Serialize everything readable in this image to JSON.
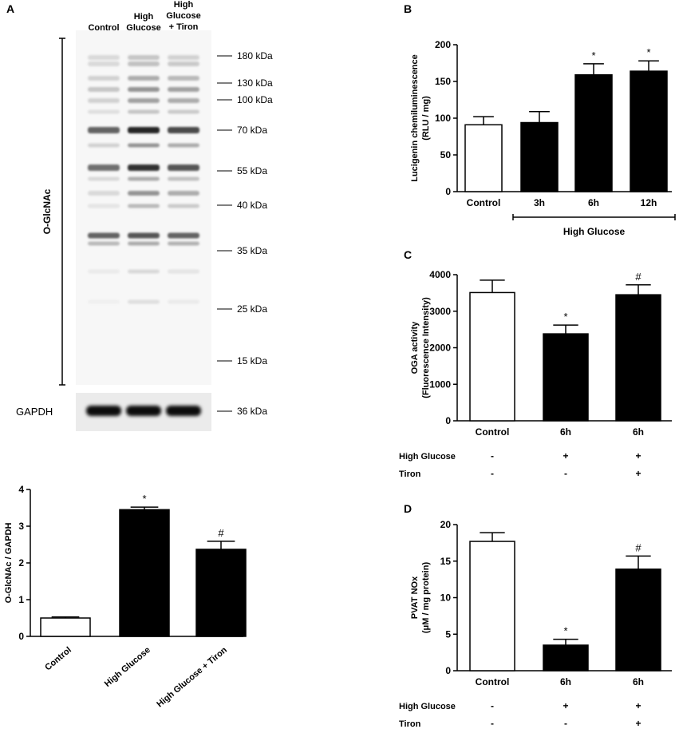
{
  "panel_labels": [
    "A",
    "B",
    "C",
    "D"
  ],
  "blot": {
    "lanes": [
      {
        "lines": [
          "Control"
        ]
      },
      {
        "lines": [
          "High",
          "Glucose"
        ]
      },
      {
        "lines": [
          "High",
          "Glucose",
          "+ Tiron"
        ]
      }
    ],
    "markers": [
      "180 kDa",
      "130 kDa",
      "100 kDa",
      "70 kDa",
      "55 kDa",
      "40 kDa",
      "35 kDa",
      "25 kDa",
      "15 kDa"
    ],
    "gapdh_marker": "36 kDa",
    "main_label": "O-GlcNAc",
    "gapdh_label": "GAPDH"
  },
  "chart_data": [
    {
      "panel": "A",
      "type": "bar",
      "categories": [
        "Control",
        "High Glucose",
        "High Glucose + Tiron"
      ],
      "values": [
        0.5,
        3.45,
        2.37
      ],
      "errors": [
        0.03,
        0.07,
        0.22
      ],
      "fills": [
        "#ffffff",
        "#000000",
        "#000000"
      ],
      "annotations": [
        "",
        "*",
        "#"
      ],
      "ylabel": "O-GlcNAc / GAPDH",
      "ylim": [
        0,
        4
      ],
      "yticks": [
        0,
        1,
        2,
        3,
        4
      ],
      "grid": false
    },
    {
      "panel": "B",
      "type": "bar",
      "categories": [
        "Control",
        "3h",
        "6h",
        "12h"
      ],
      "values": [
        91,
        94,
        159,
        164
      ],
      "errors": [
        11,
        15,
        15,
        14
      ],
      "fills": [
        "#ffffff",
        "#000000",
        "#000000",
        "#000000"
      ],
      "annotations": [
        "",
        "",
        "*",
        "*"
      ],
      "ylabel_lines": [
        "Lucigenin chemiluminescence",
        "(RLU / mg)"
      ],
      "ylim": [
        0,
        200
      ],
      "yticks": [
        0,
        50,
        100,
        150,
        200
      ],
      "group_label": "High Glucose",
      "grid": false
    },
    {
      "panel": "C",
      "type": "bar",
      "categories": [
        "Control",
        "6h",
        "6h"
      ],
      "values": [
        3510,
        2380,
        3450
      ],
      "errors": [
        340,
        240,
        270
      ],
      "fills": [
        "#ffffff",
        "#000000",
        "#000000"
      ],
      "annotations": [
        "",
        "*",
        "#"
      ],
      "ylabel_lines": [
        "OGA activity",
        "(Fluorescence Intensity)"
      ],
      "ylim": [
        0,
        4000
      ],
      "yticks": [
        0,
        1000,
        2000,
        3000,
        4000
      ],
      "conditions": [
        {
          "label": "High Glucose",
          "marks": [
            "-",
            "+",
            "+"
          ]
        },
        {
          "label": "Tiron",
          "marks": [
            "-",
            "-",
            "+"
          ]
        }
      ],
      "grid": false
    },
    {
      "panel": "D",
      "type": "bar",
      "categories": [
        "Control",
        "6h",
        "6h"
      ],
      "values": [
        17.7,
        3.5,
        13.9
      ],
      "errors": [
        1.2,
        0.8,
        1.8
      ],
      "fills": [
        "#ffffff",
        "#000000",
        "#000000"
      ],
      "annotations": [
        "",
        "*",
        "#"
      ],
      "ylabel_lines": [
        "PVAT NOx",
        "(μM / mg protein)"
      ],
      "ylim": [
        0,
        20
      ],
      "yticks": [
        0,
        5,
        10,
        15,
        20
      ],
      "conditions": [
        {
          "label": "High Glucose",
          "marks": [
            "-",
            "+",
            "+"
          ]
        },
        {
          "label": "Tiron",
          "marks": [
            "-",
            "-",
            "+"
          ]
        }
      ],
      "grid": false
    }
  ]
}
